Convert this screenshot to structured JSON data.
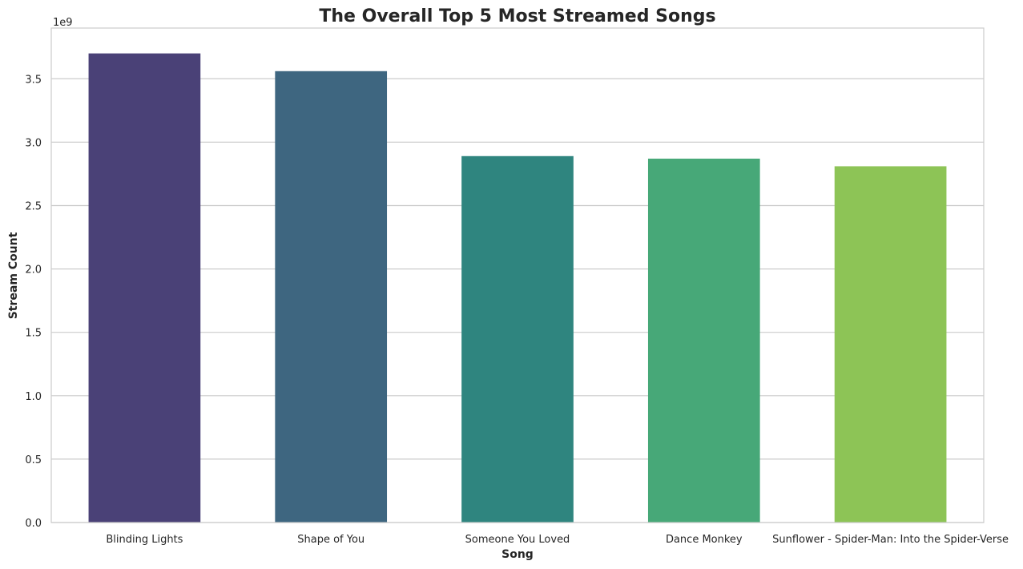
{
  "chart_data": {
    "type": "bar",
    "title": "The Overall Top 5 Most Streamed Songs",
    "xlabel": "Song",
    "ylabel": "Stream Count",
    "y_offset_label": "1e9",
    "categories": [
      "Blinding Lights",
      "Shape of You",
      "Someone You Loved",
      "Dance Monkey",
      "Sunflower - Spider-Man: Into the Spider-Verse"
    ],
    "values": [
      3.7,
      3.56,
      2.89,
      2.87,
      2.81
    ],
    "value_scale": 1000000000,
    "colors": [
      "#4a4177",
      "#3e6680",
      "#2f857f",
      "#47a878",
      "#8dc456"
    ],
    "ylim": [
      0,
      3.9
    ],
    "yticks": [
      0.0,
      0.5,
      1.0,
      1.5,
      2.0,
      2.5,
      3.0,
      3.5
    ],
    "ytick_labels": [
      "0.0",
      "0.5",
      "1.0",
      "1.5",
      "2.0",
      "2.5",
      "3.0",
      "3.5"
    ],
    "grid": "horizontal",
    "legend": "none"
  }
}
